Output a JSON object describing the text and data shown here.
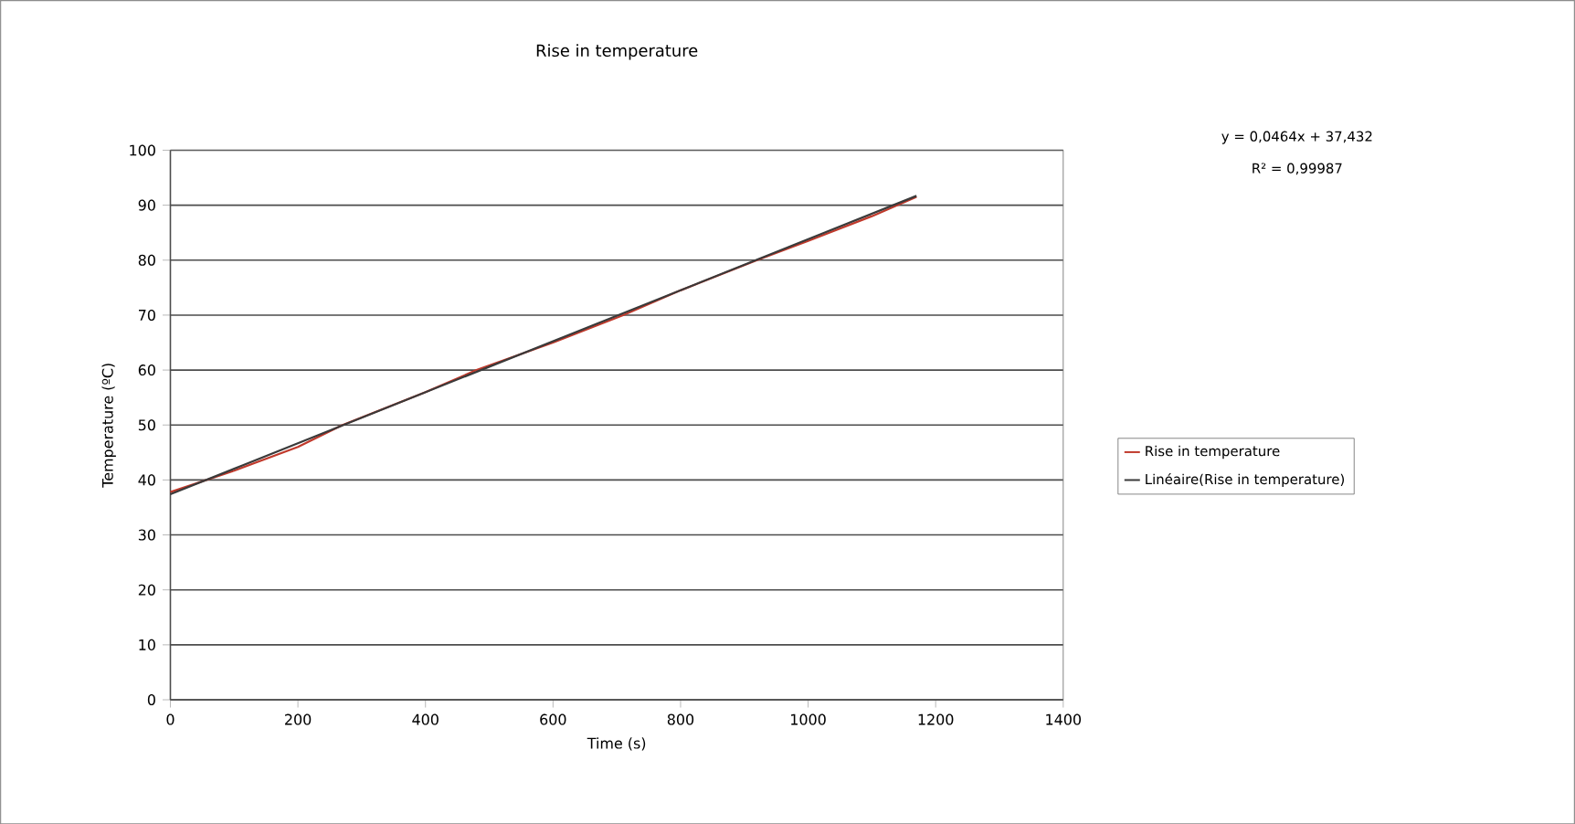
{
  "chart_data": {
    "type": "line",
    "title": "Rise in temperature",
    "xlabel": "Time (s)",
    "ylabel": "Temperature (ºC)",
    "xlim": [
      0,
      1400
    ],
    "xticks": [
      0,
      200,
      400,
      600,
      800,
      1000,
      1200,
      1400
    ],
    "ylim": [
      0,
      100
    ],
    "yticks": [
      0,
      10,
      20,
      30,
      40,
      50,
      60,
      70,
      80,
      90,
      100
    ],
    "grid": "y",
    "legend": "right",
    "marker": "none",
    "line_style": "solid",
    "annotations": [
      "y = 0,0464x + 37,432",
      "R² = 0,99987"
    ],
    "series": [
      {
        "name": "Rise in temperature",
        "color": "#c0392b",
        "x": [
          0,
          100,
          200,
          270,
          400,
          480,
          600,
          710,
          800,
          920,
          1000,
          1100,
          1170
        ],
        "values": [
          37.8,
          41.7,
          46,
          50,
          56,
          60,
          65,
          70,
          74.5,
          80,
          83.5,
          88,
          91.5
        ]
      },
      {
        "name": "Linéaire(Rise in temperature)",
        "color": "#3a3a3a",
        "x": [
          0,
          1170
        ],
        "values": [
          37.4,
          91.7
        ]
      }
    ]
  }
}
